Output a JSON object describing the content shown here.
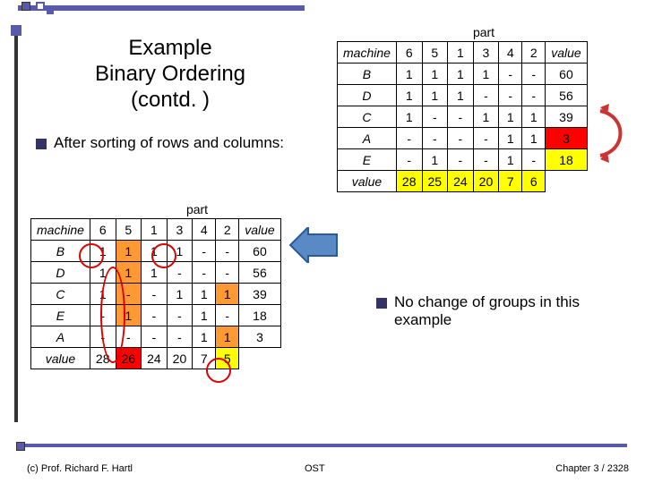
{
  "deco": {
    "accent": "#5a5aaa",
    "dark": "#333"
  },
  "title_line1": "Example",
  "title_line2": "Binary Ordering",
  "title_line3": "(contd. )",
  "after_sorting": "After sorting of rows and columns:",
  "no_change": "No change of groups in this example",
  "top_table": {
    "group_label": "part",
    "header": [
      "machine",
      "6",
      "5",
      "1",
      "3",
      "4",
      "2",
      "value"
    ],
    "rows": [
      [
        "B",
        "1",
        "1",
        "1",
        "1",
        "-",
        "-",
        "60"
      ],
      [
        "D",
        "1",
        "1",
        "1",
        "-",
        "-",
        "-",
        "56"
      ],
      [
        "C",
        "1",
        "-",
        "-",
        "1",
        "1",
        "1",
        "39"
      ],
      [
        "A",
        "-",
        "-",
        "-",
        "-",
        "1",
        "1",
        "3"
      ],
      [
        "E",
        "-",
        "1",
        "-",
        "-",
        "1",
        "-",
        "18"
      ]
    ],
    "footer": [
      "value",
      "28",
      "25",
      "24",
      "20",
      "7",
      "6",
      ""
    ],
    "highlights": {
      "A_value": "#ff0000",
      "E_value": "#ffff00",
      "footer": "#ffff00"
    }
  },
  "bottom_table": {
    "group_label": "part",
    "header": [
      "machine",
      "6",
      "5",
      "1",
      "3",
      "4",
      "2",
      "value"
    ],
    "rows": [
      [
        "B",
        "1",
        "1",
        "1",
        "1",
        "-",
        "-",
        "60"
      ],
      [
        "D",
        "1",
        "1",
        "1",
        "-",
        "-",
        "-",
        "56"
      ],
      [
        "C",
        "1",
        "-",
        "-",
        "1",
        "1",
        "1",
        "39"
      ],
      [
        "E",
        "-",
        "1",
        "-",
        "-",
        "1",
        "-",
        "18"
      ],
      [
        "A",
        "-",
        "-",
        "-",
        "-",
        "1",
        "1",
        "3"
      ]
    ],
    "footer": [
      "value",
      "28",
      "26",
      "24",
      "20",
      "7",
      "5",
      ""
    ],
    "highlights": {
      "5col": "#ff0000",
      "2col": "#ffff00",
      "orange": "#ff9933"
    }
  },
  "footer": {
    "left": "(c) Prof. Richard F. Hartl",
    "mid": "OST",
    "right": "Chapter 3 / 23",
    "pagenum_overlay": "28"
  }
}
